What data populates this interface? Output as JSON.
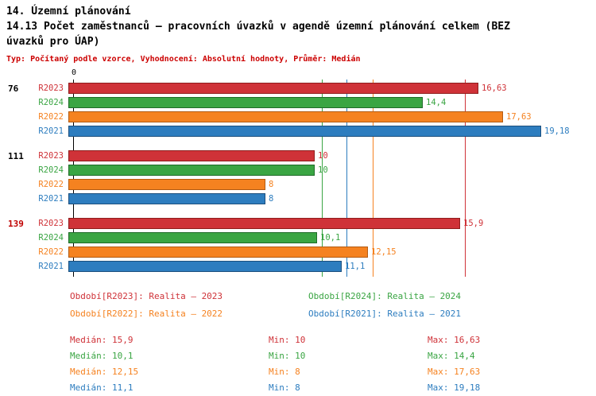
{
  "header": {
    "title_lines": [
      "14. Územní plánování",
      "14.13 Počet zaměstnanců – pracovních úvazků v agendě územní plánování celkem (BEZ",
      "úvazků pro ÚAP)"
    ],
    "meta": "Typ: Počítaný podle vzorce, Vyhodnocení: Absolutní hodnoty, Průměr: Medián"
  },
  "chart_data": {
    "type": "bar",
    "orientation": "horizontal",
    "value_axis": {
      "min": 0,
      "zero_label": "0",
      "approx_max": 19.8
    },
    "grid": "median-lines-per-series",
    "legend_position": "bottom",
    "row_order": [
      "R2023",
      "R2024",
      "R2022",
      "R2021"
    ],
    "series": [
      {
        "key": "R2023",
        "label": "R2023",
        "legend": "Období[R2023]: Realita – 2023",
        "color": "#cf3238",
        "border": "#8f1d1d",
        "median": 15.9,
        "stats": {
          "median": "Medián: 15,9",
          "min": "Min: 10",
          "max": "Max: 16,63"
        }
      },
      {
        "key": "R2024",
        "label": "R2024",
        "legend": "Období[R2024]: Realita – 2024",
        "color": "#3aa543",
        "border": "#1e6b28",
        "median": 10.1,
        "stats": {
          "median": "Medián: 10,1",
          "min": "Min: 10",
          "max": "Max: 14,4"
        }
      },
      {
        "key": "R2022",
        "label": "R2022",
        "legend": "Období[R2022]: Realita – 2022",
        "color": "#f58220",
        "border": "#b35b12",
        "median": 12.15,
        "stats": {
          "median": "Medián: 12,15",
          "min": "Min: 8",
          "max": "Max: 17,63"
        }
      },
      {
        "key": "R2021",
        "label": "R2021",
        "legend": "Období[R2021]: Realita – 2021",
        "color": "#2d7dbf",
        "border": "#1b4f7e",
        "median": 11.1,
        "stats": {
          "median": "Medián: 11,1",
          "min": "Min: 8",
          "max": "Max: 19,18"
        }
      }
    ],
    "groups": [
      {
        "label": "76",
        "label_color": "#000000",
        "values": {
          "R2023": 16.63,
          "R2024": 14.4,
          "R2022": 17.63,
          "R2021": 19.18
        },
        "displays": {
          "R2023": "16,63",
          "R2024": "14,4",
          "R2022": "17,63",
          "R2021": "19,18"
        }
      },
      {
        "label": "111",
        "label_color": "#000000",
        "values": {
          "R2023": 10,
          "R2024": 10,
          "R2022": 8,
          "R2021": 8
        },
        "displays": {
          "R2023": "10",
          "R2024": "10",
          "R2022": "8",
          "R2021": "8"
        }
      },
      {
        "label": "139",
        "label_color": "#c00000",
        "values": {
          "R2023": 15.9,
          "R2024": 10.1,
          "R2022": 12.15,
          "R2021": 11.1
        },
        "displays": {
          "R2023": "15,9",
          "R2024": "10,1",
          "R2022": "12,15",
          "R2021": "11,1"
        }
      }
    ]
  }
}
